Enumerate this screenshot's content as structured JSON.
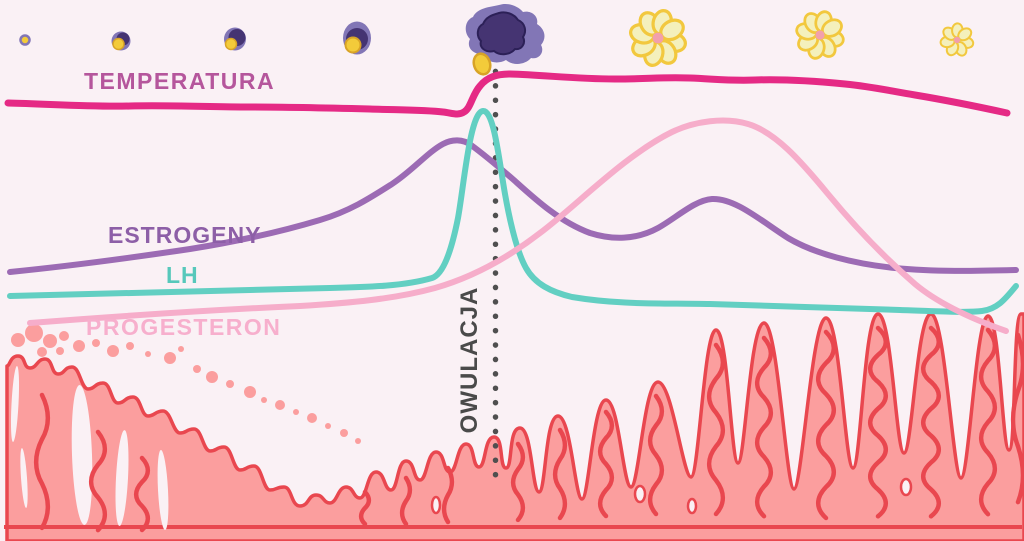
{
  "diagram": {
    "labels": {
      "temperature": "TEMPERATURA",
      "estrogen": "ESTROGENY",
      "lh": "LH",
      "progesterone": "PROGESTERON",
      "ovulation": "OWULACJA"
    },
    "curves": [
      {
        "name": "temperature",
        "label": "TEMPERATURA",
        "color": "#e52a85",
        "shape": "flat with biphasic rise at ovulation, falls at cycle end"
      },
      {
        "name": "estrogen",
        "label": "ESTROGENY",
        "color": "#9c6bb4",
        "shape": "rises to peak just before ovulation, second smaller hump mid-luteal, falls at end"
      },
      {
        "name": "lh",
        "label": "LH",
        "color": "#62cfc2",
        "shape": "flat baseline with sharp narrow surge at ovulation, small uptick at cycle end"
      },
      {
        "name": "progesterone",
        "label": "PROGESTERON",
        "color": "#f6adca",
        "shape": "low in follicular phase, broad luteal peak after ovulation, falls at end"
      }
    ],
    "icons": {
      "follicle_stages": [
        "primordial-follicle",
        "primary-follicle",
        "secondary-follicle",
        "graafian-follicle",
        "ovulating-follicle"
      ],
      "oocyte": "released-egg",
      "corpus_luteum_stages": [
        "corpus-luteum",
        "corpus-luteum-regressing",
        "corpus-albicans"
      ],
      "tissue": "endometrium-lining",
      "menstruation": "shedding-dots"
    },
    "colors": {
      "background": "#faf1f5",
      "temperature_line": "#e52a85",
      "temperature_label": "#b5569c",
      "estrogen_line": "#9c6bb4",
      "estrogen_label": "#8d5fa7",
      "lh_line": "#62cfc2",
      "lh_label": "#57c8bb",
      "progesterone_line": "#f6adca",
      "progesterone_label": "#f7afcd",
      "ovulation_dotline": "#4f4f4f",
      "ovulation_label": "#4a4a4a",
      "endometrium_fill": "#fb9e9e",
      "endometrium_line": "#e9474f",
      "shedding_dot": "#fb9e9e",
      "follicle_outer": "#8276b6",
      "follicle_inner": "#453472",
      "follicle_inner_outline": "#2c2057",
      "oocyte_fill": "#f3cb3a",
      "oocyte_outline": "#d8a326",
      "luteum_petal": "#f4f0bc",
      "luteum_outline": "#f2c83e",
      "luteum_center": "#f2a0ac"
    }
  }
}
